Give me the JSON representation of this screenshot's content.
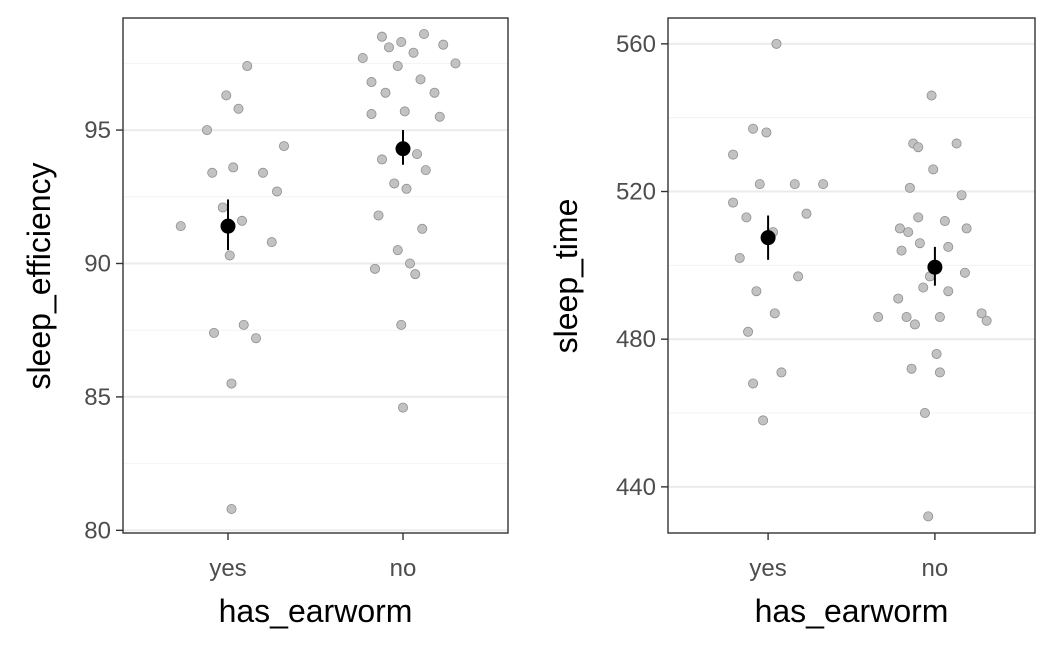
{
  "chart_data": [
    {
      "type": "scatter",
      "xlabel": "has_earworm",
      "ylabel": "sleep_efficiency",
      "categories": [
        "yes",
        "no"
      ],
      "ylim": [
        79.9,
        99.2
      ],
      "yticks": [
        80,
        85,
        90,
        95
      ],
      "ytick_labels": [
        "80",
        "85",
        "90",
        "95"
      ],
      "grid": true,
      "points": {
        "yes": [
          {
            "x": 0.73,
            "y": 91.4
          },
          {
            "x": 0.88,
            "y": 95.0
          },
          {
            "x": 0.91,
            "y": 93.4
          },
          {
            "x": 0.92,
            "y": 87.4
          },
          {
            "x": 0.97,
            "y": 92.1
          },
          {
            "x": 0.99,
            "y": 96.3
          },
          {
            "x": 1.01,
            "y": 90.3
          },
          {
            "x": 1.02,
            "y": 85.5
          },
          {
            "x": 1.03,
            "y": 93.6
          },
          {
            "x": 1.02,
            "y": 80.8
          },
          {
            "x": 1.06,
            "y": 95.8
          },
          {
            "x": 1.08,
            "y": 91.6
          },
          {
            "x": 1.09,
            "y": 87.7
          },
          {
            "x": 1.11,
            "y": 97.4
          },
          {
            "x": 1.16,
            "y": 87.2
          },
          {
            "x": 1.2,
            "y": 93.4
          },
          {
            "x": 1.25,
            "y": 90.8
          },
          {
            "x": 1.28,
            "y": 92.7
          },
          {
            "x": 1.32,
            "y": 94.4
          }
        ],
        "no": [
          {
            "x": 1.77,
            "y": 97.7
          },
          {
            "x": 1.82,
            "y": 95.6
          },
          {
            "x": 1.82,
            "y": 96.8
          },
          {
            "x": 1.84,
            "y": 89.8
          },
          {
            "x": 1.86,
            "y": 91.8
          },
          {
            "x": 1.88,
            "y": 98.5
          },
          {
            "x": 1.88,
            "y": 93.9
          },
          {
            "x": 1.9,
            "y": 96.4
          },
          {
            "x": 1.92,
            "y": 98.1
          },
          {
            "x": 1.95,
            "y": 93.0
          },
          {
            "x": 1.97,
            "y": 97.4
          },
          {
            "x": 1.97,
            "y": 90.5
          },
          {
            "x": 1.99,
            "y": 98.3
          },
          {
            "x": 1.99,
            "y": 87.7
          },
          {
            "x": 2.0,
            "y": 84.6
          },
          {
            "x": 2.01,
            "y": 95.7
          },
          {
            "x": 2.02,
            "y": 92.8
          },
          {
            "x": 2.04,
            "y": 90.0
          },
          {
            "x": 2.06,
            "y": 97.9
          },
          {
            "x": 2.07,
            "y": 89.6
          },
          {
            "x": 2.08,
            "y": 94.1
          },
          {
            "x": 2.1,
            "y": 96.9
          },
          {
            "x": 2.11,
            "y": 91.3
          },
          {
            "x": 2.12,
            "y": 98.6
          },
          {
            "x": 2.13,
            "y": 93.5
          },
          {
            "x": 2.18,
            "y": 96.4
          },
          {
            "x": 2.21,
            "y": 95.5
          },
          {
            "x": 2.23,
            "y": 98.2
          },
          {
            "x": 2.3,
            "y": 97.5
          }
        ]
      },
      "means": [
        {
          "category": "yes",
          "mean": 91.4,
          "lower": 90.5,
          "upper": 92.4
        },
        {
          "category": "no",
          "mean": 94.3,
          "lower": 93.7,
          "upper": 95.0
        }
      ]
    },
    {
      "type": "scatter",
      "xlabel": "has_earworm",
      "ylabel": "sleep_time",
      "categories": [
        "yes",
        "no"
      ],
      "ylim": [
        427.5,
        567
      ],
      "yticks": [
        440,
        480,
        520,
        560
      ],
      "ytick_labels": [
        "440",
        "480",
        "520",
        "560"
      ],
      "grid": true,
      "points": {
        "yes": [
          {
            "x": 0.79,
            "y": 530
          },
          {
            "x": 0.79,
            "y": 517
          },
          {
            "x": 0.83,
            "y": 502
          },
          {
            "x": 0.87,
            "y": 513
          },
          {
            "x": 0.88,
            "y": 482
          },
          {
            "x": 0.91,
            "y": 537
          },
          {
            "x": 0.91,
            "y": 468
          },
          {
            "x": 0.93,
            "y": 493
          },
          {
            "x": 0.95,
            "y": 522
          },
          {
            "x": 0.97,
            "y": 458
          },
          {
            "x": 0.99,
            "y": 536
          },
          {
            "x": 1.03,
            "y": 509
          },
          {
            "x": 1.05,
            "y": 560
          },
          {
            "x": 1.04,
            "y": 487
          },
          {
            "x": 1.08,
            "y": 471
          },
          {
            "x": 1.16,
            "y": 522
          },
          {
            "x": 1.18,
            "y": 497
          },
          {
            "x": 1.23,
            "y": 514
          },
          {
            "x": 1.33,
            "y": 522
          }
        ],
        "no": [
          {
            "x": 1.66,
            "y": 486
          },
          {
            "x": 1.78,
            "y": 491
          },
          {
            "x": 1.79,
            "y": 510
          },
          {
            "x": 1.8,
            "y": 504
          },
          {
            "x": 1.83,
            "y": 486
          },
          {
            "x": 1.84,
            "y": 509
          },
          {
            "x": 1.85,
            "y": 521
          },
          {
            "x": 1.86,
            "y": 472
          },
          {
            "x": 1.87,
            "y": 533
          },
          {
            "x": 1.88,
            "y": 484
          },
          {
            "x": 1.9,
            "y": 532
          },
          {
            "x": 1.9,
            "y": 513
          },
          {
            "x": 1.91,
            "y": 506
          },
          {
            "x": 1.93,
            "y": 494
          },
          {
            "x": 1.94,
            "y": 460
          },
          {
            "x": 1.96,
            "y": 432
          },
          {
            "x": 1.97,
            "y": 497
          },
          {
            "x": 1.98,
            "y": 546
          },
          {
            "x": 1.99,
            "y": 526
          },
          {
            "x": 2.01,
            "y": 476
          },
          {
            "x": 2.03,
            "y": 486
          },
          {
            "x": 2.03,
            "y": 471
          },
          {
            "x": 2.06,
            "y": 512
          },
          {
            "x": 2.08,
            "y": 493
          },
          {
            "x": 2.08,
            "y": 505
          },
          {
            "x": 2.13,
            "y": 533
          },
          {
            "x": 2.16,
            "y": 519
          },
          {
            "x": 2.18,
            "y": 498
          },
          {
            "x": 2.19,
            "y": 510
          },
          {
            "x": 2.28,
            "y": 487
          },
          {
            "x": 2.31,
            "y": 485
          }
        ]
      },
      "means": [
        {
          "category": "yes",
          "mean": 507.5,
          "lower": 501.5,
          "upper": 513.5
        },
        {
          "category": "no",
          "mean": 499.5,
          "lower": 494.5,
          "upper": 505.0
        }
      ]
    }
  ],
  "colors": {
    "point_fill": "#c2c2c2",
    "point_stroke": "#8f8f8f",
    "mean_point": "#000000",
    "major_grid": "#ebebeb",
    "minor_grid": "#f3f3f3",
    "panel_border": "#333333",
    "tick_label": "#4d4d4d",
    "axis_title": "#000000"
  }
}
